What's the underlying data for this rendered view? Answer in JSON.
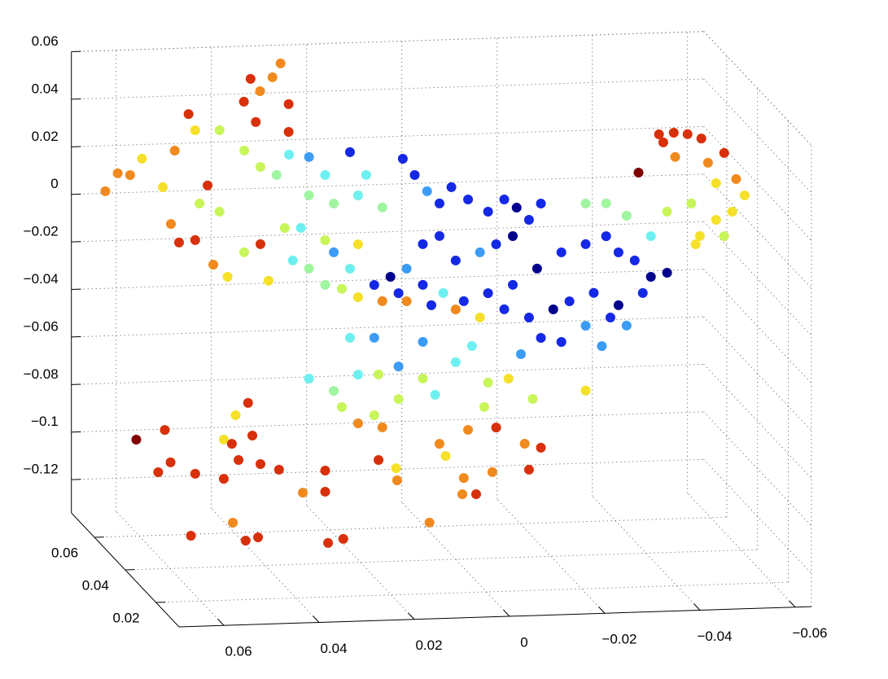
{
  "chart_data": {
    "type": "scatter3",
    "xlim": [
      -0.0634,
      0.0694
    ],
    "ylim": [
      0.005,
      0.075
    ],
    "zlim": [
      -0.134,
      0.06
    ],
    "xticks": [
      {
        "value": -0.06,
        "label": "−0.06"
      },
      {
        "value": -0.04,
        "label": "−0.04"
      },
      {
        "value": -0.02,
        "label": "−0.02"
      },
      0,
      0.02,
      0.04,
      0.06
    ],
    "yticks": [
      0.02,
      0.04,
      0.06
    ],
    "zticks": [
      {
        "value": -0.12,
        "label": "−0.12"
      },
      {
        "value": -0.1,
        "label": "−0.1"
      },
      {
        "value": -0.08,
        "label": "−0.08"
      },
      {
        "value": -0.06,
        "label": "−0.06"
      },
      {
        "value": -0.04,
        "label": "−0.04"
      },
      {
        "value": -0.02,
        "label": "−0.02"
      },
      0,
      0.02,
      0.04,
      0.06
    ],
    "grid": true,
    "x": [
      0.0655,
      0.0629,
      0.0603,
      0.0578,
      0.0615,
      0.059,
      0.0561,
      0.0547,
      0.0521,
      0.0496,
      0.0598,
      0.0581,
      0.0547,
      0.0509,
      0.0479,
      0.0444,
      0.041,
      0.0393,
      0.0538,
      0.0496,
      0.035,
      0.033,
      0.0304,
      0.0287,
      0.0364,
      0.027,
      0.0339,
      0.027,
      0.0444,
      0.041,
      0.0376,
      0.035,
      0.0308,
      0.0274,
      0.0222,
      0.0188,
      0.0308,
      0.0256,
      0.0205,
      0.0154,
      0.0359,
      0.0325,
      0.0274,
      0.0205,
      0.0342,
      0.0308,
      0.0256,
      0.0222,
      0.0111,
      0.0086,
      0.006,
      0.0034,
      0.0009,
      -0.0026,
      -0.0068,
      -0.0102,
      -0.0128,
      -0.0154,
      -0.0179,
      -0.012,
      -0.0085,
      -0.0051,
      0,
      0.0034,
      0.0069,
      0.0103,
      0.0137,
      0.0171,
      0.012,
      0.0069,
      0.0026,
      -0.0017,
      -0.0068,
      -0.012,
      -0.0171,
      -0.0222,
      -0.0273,
      -0.0316,
      -0.0342,
      -0.0376,
      -0.041,
      -0.0444,
      -0.0393,
      -0.0342,
      -0.029,
      -0.0239,
      -0.0205,
      -0.0154,
      -0.0102,
      -0.0051,
      0,
      0.0051,
      0.0103,
      0.0154,
      0.0205,
      0.0239,
      0.0274,
      -0.0222,
      -0.0179,
      -0.0273,
      -0.0325,
      -0.0359,
      -0.0273,
      -0.0316,
      -0.0359,
      -0.041,
      -0.0427,
      -0.0458,
      -0.0487,
      -0.0516,
      -0.0436,
      -0.0384,
      -0.0461,
      -0.053,
      -0.0564,
      -0.0547,
      -0.0589,
      -0.0607,
      -0.0581,
      -0.0547,
      -0.0513,
      -0.0564,
      -0.0495,
      -0.0504,
      -0.0444,
      0.0222,
      0.0171,
      0.012,
      0.0308,
      0.0256,
      0.0205,
      0.0162,
      0.012,
      0.0069,
      0.0043,
      0,
      -0.0068,
      -0.0111,
      -0.0162,
      -0.0273,
      -0.0307,
      -0.0034,
      0.0069,
      -0.0137,
      0.0239,
      0.0171,
      0.0205,
      -0.006,
      0.059,
      0.053,
      0.0518,
      0.0544,
      0.0547,
      0.0487,
      0.047,
      0.0436,
      0.0456,
      0.041,
      0.0371,
      0.0427,
      0.0487,
      0.0274,
      0.0274,
      0.0321,
      0.0162,
      0.0125,
      0.0123,
      0.0034,
      0.0021,
      -0.0026,
      -0.0085,
      -0.0145,
      -0.0179,
      -0.0154,
      -0.0077,
      -0.0017,
      -0.0043,
      -0.0014,
      0.0055,
      0.0556,
      0.0468,
      0.0441,
      0.0415,
      0.0268,
      0.0236,
      0.0154,
      0.0462
    ],
    "y": [
      0.065,
      0.065,
      0.065,
      0.065,
      0.04,
      0.04,
      0.04,
      0.04,
      0.04,
      0.04,
      0.04,
      0.04,
      0.04,
      0.04,
      0.04,
      0.04,
      0.04,
      0.04,
      0.04,
      0.04,
      0.065,
      0.065,
      0.065,
      0.065,
      0.065,
      0.065,
      0.065,
      0.065,
      0.04,
      0.04,
      0.04,
      0.04,
      0.04,
      0.04,
      0.04,
      0.04,
      0.04,
      0.04,
      0.04,
      0.04,
      0.04,
      0.04,
      0.04,
      0.04,
      0.04,
      0.04,
      0.04,
      0.04,
      0.04,
      0.04,
      0.04,
      0.04,
      0.04,
      0.04,
      0.04,
      0.04,
      0.04,
      0.04,
      0.04,
      0.04,
      0.04,
      0.04,
      0.04,
      0.04,
      0.04,
      0.04,
      0.04,
      0.04,
      0.04,
      0.04,
      0.04,
      0.04,
      0.04,
      0.04,
      0.04,
      0.04,
      0.04,
      0.04,
      0.04,
      0.04,
      0.04,
      0.04,
      0.04,
      0.04,
      0.04,
      0.04,
      0.04,
      0.04,
      0.04,
      0.04,
      0.04,
      0.04,
      0.04,
      0.04,
      0.04,
      0.04,
      0.04,
      0.04,
      0.04,
      0.04,
      0.04,
      0.04,
      0.04,
      0.04,
      0.04,
      0.04,
      0.04,
      0.04,
      0.04,
      0.04,
      0.04,
      0.04,
      0.04,
      0.04,
      0.04,
      0.04,
      0.04,
      0.04,
      0.04,
      0.04,
      0.04,
      0.04,
      0.04,
      0.04,
      0.04,
      0.04,
      0.04,
      0.04,
      0.04,
      0.04,
      0.04,
      0.04,
      0.04,
      0.04,
      0.04,
      0.04,
      0.04,
      0.04,
      0.04,
      0.04,
      0.04,
      0.04,
      0.04,
      0.04,
      0.04,
      0.04,
      0.04,
      0.04,
      0.065,
      0.065,
      0.065,
      0.065,
      0.04,
      0.04,
      0.04,
      0.04,
      0.04,
      0.04,
      0.04,
      0.04,
      0.04,
      0.04,
      0.04,
      0.04,
      0.04,
      0.04,
      0.04,
      0.04,
      0.04,
      0.04,
      0.04,
      0.04,
      0.04,
      0.04,
      0.04,
      0.04,
      0.04,
      0.04,
      0.04,
      0.04,
      0.04,
      0.04,
      0.04,
      0.04,
      0.04,
      0.04,
      0.04
    ],
    "z": [
      0.0079,
      0.0153,
      0.0144,
      0.0211,
      0.0265,
      0.0417,
      0.0569,
      0.05,
      0.0266,
      0.0497,
      0.0109,
      0.003,
      0.0038,
      -0.0068,
      -0.0121,
      -0.002,
      0.0012,
      -0.0143,
      0.0191,
      0.0154,
      0.0532,
      0.0479,
      0.0536,
      0.0593,
      0.0437,
      0.0421,
      0.035,
      0.0304,
      0.0408,
      0.0337,
      0.0301,
      0.0385,
      0.0372,
      0.0294,
      0.0387,
      0.0289,
      0.0211,
      0.0173,
      0.0204,
      0.015,
      0.0077,
      0.0075,
      0.002,
      -0.0002,
      -0.0061,
      -0.0097,
      -0.0032,
      -0.0103,
      0.0352,
      0.0282,
      0.0212,
      0.0159,
      0.0226,
      0.0172,
      0.0118,
      0.0167,
      0.0131,
      0.0078,
      0.0145,
      0.0012,
      -0.002,
      -0.0052,
      -0.0083,
      0.0022,
      -0.001,
      -0.0111,
      -0.0143,
      -0.0175,
      -0.0213,
      -0.0181,
      -0.0218,
      -0.0255,
      -0.0225,
      -0.0193,
      -0.0128,
      -0.0063,
      -0.0032,
      -0.0001,
      -0.0071,
      -0.0107,
      -0.0178,
      -0.0163,
      -0.0245,
      -0.0293,
      -0.0238,
      -0.027,
      -0.0302,
      -0.0333,
      -0.0295,
      -0.0326,
      -0.0289,
      -0.0268,
      -0.0248,
      -0.0244,
      -0.0224,
      -0.0187,
      -0.0168,
      -0.044,
      -0.042,
      -0.0375,
      -0.0344,
      -0.038,
      0.0139,
      0.0137,
      0.0082,
      -0.0007,
      0.042,
      0.0425,
      0.0417,
      0.0397,
      0.0386,
      0.0262,
      0.0323,
      0.0294,
      0.0333,
      0.0207,
      0.0222,
      0.0152,
      0.0085,
      0.0053,
      -0.0013,
      -0.0017,
      0.0125,
      -0.0047,
      0.0094,
      -0.0394,
      -0.0397,
      -0.0521,
      -0.056,
      -0.0615,
      -0.055,
      -0.0552,
      -0.0658,
      -0.0575,
      -0.0645,
      -0.0511,
      -0.0601,
      -0.0587,
      -0.0676,
      -0.0648,
      -0.0463,
      -0.0445,
      -0.0421,
      -0.0486,
      -0.0684,
      -0.0723,
      -0.0755,
      -0.0703,
      -0.097,
      -0.0933,
      -0.107,
      -0.111,
      -0.0945,
      -0.0805,
      -0.0824,
      -0.0654,
      -0.0893,
      -0.0913,
      -0.0939,
      -0.0792,
      -0.097,
      -0.0949,
      -0.1038,
      -0.1039,
      -0.0912,
      -0.0949,
      -0.1,
      -0.0852,
      -0.0904,
      -0.0797,
      -0.0791,
      -0.0863,
      -0.0882,
      -0.0973,
      -0.0978,
      -0.0999,
      -0.1069,
      -0.1067,
      -0.1182,
      -0.1205,
      -0.1156,
      -0.1233,
      -0.1221,
      -0.1254,
      -0.1239,
      -0.0775,
      -0.0704
    ],
    "colors": [
      "#f08a1e",
      "#f08a1e",
      "#f08a1e",
      "#f5e02a",
      "#f5e02a",
      "#f08a1e",
      "#d8300a",
      "#f5e02a",
      "#d8300a",
      "#c8f55a",
      "#f08a1e",
      "#d8300a",
      "#d8300a",
      "#f08a1e",
      "#f5e02a",
      "#c8f55a",
      "#d8300a",
      "#f5e02a",
      "#c8f55a",
      "#c8f55a",
      "#d8300a",
      "#f08a1e",
      "#f08a1e",
      "#f08a1e",
      "#d8300a",
      "#d8300a",
      "#d8300a",
      "#d8300a",
      "#c8f55a",
      "#c8f55a",
      "#a0f5a0",
      "#6ff0f0",
      "#3c9cf5",
      "#6ff0f0",
      "#1428e6",
      "#6ff0f0",
      "#a0f5a0",
      "#a0f5a0",
      "#6ff0f0",
      "#a0f5a0",
      "#c8f55a",
      "#6ff0f0",
      "#c8f55a",
      "#f5e02a",
      "#6ff0f0",
      "#a0f5a0",
      "#3c9cf5",
      "#6ff0f0",
      "#1428e6",
      "#1428e6",
      "#3c9cf5",
      "#1428e6",
      "#1428e6",
      "#1428e6",
      "#1428e6",
      "#1428e6",
      "#00008c",
      "#1428e6",
      "#1428e6",
      "#00008c",
      "#1428e6",
      "#3c9cf5",
      "#1428e6",
      "#1428e6",
      "#1428e6",
      "#3c9cf5",
      "#00008c",
      "#1428e6",
      "#1428e6",
      "#1428e6",
      "#6ff0f0",
      "#1428e6",
      "#1428e6",
      "#1428e6",
      "#00008c",
      "#1428e6",
      "#1428e6",
      "#1428e6",
      "#1428e6",
      "#1428e6",
      "#00008c",
      "#00008c",
      "#1428e6",
      "#00008c",
      "#1428e6",
      "#1428e6",
      "#00008c",
      "#1428e6",
      "#1428e6",
      "#f5e02a",
      "#f08a1e",
      "#1428e6",
      "#f08a1e",
      "#f08a1e",
      "#f5e02a",
      "#c8f55a",
      "#a0f5a0",
      "#1428e6",
      "#1428e6",
      "#3c9cf5",
      "#1428e6",
      "#3c9cf5",
      "#a0f5a0",
      "#a0f5a0",
      "#a0f5a0",
      "#6ff0f0",
      "#d8300a",
      "#d8300a",
      "#d8300a",
      "#d8300a",
      "#d8300a",
      "#800000",
      "#f08a1e",
      "#f08a1e",
      "#d8300a",
      "#f5e02a",
      "#f08a1e",
      "#f5e02a",
      "#f5e02a",
      "#f5e02a",
      "#f5e02a",
      "#c8f55a",
      "#c8f55a",
      "#f5e02a",
      "#c8f55a",
      "#6ff0f0",
      "#3c9cf5",
      "#3c9cf5",
      "#6ff0f0",
      "#a0f5a0",
      "#6ff0f0",
      "#c8f55a",
      "#c8f55a",
      "#c8f55a",
      "#6ff0f0",
      "#6ff0f0",
      "#c8f55a",
      "#f5e02a",
      "#c8f55a",
      "#f5e02a",
      "#3c9cf5",
      "#6ff0f0",
      "#3c9cf5",
      "#3c9cf5",
      "#c8f55a",
      "#c8f55a",
      "#f08a1e",
      "#c8f55a",
      "#800000",
      "#d8300a",
      "#d8300a",
      "#d8300a",
      "#d8300a",
      "#f5e02a",
      "#d8300a",
      "#d8300a",
      "#d8300a",
      "#d8300a",
      "#d8300a",
      "#d8300a",
      "#d8300a",
      "#d8300a",
      "#d8300a",
      "#f08a1e",
      "#d8300a",
      "#f5e02a",
      "#f08a1e",
      "#f08a1e",
      "#f5e02a",
      "#f08a1e",
      "#d8300a",
      "#f08a1e",
      "#d8300a",
      "#d8300a",
      "#f08a1e",
      "#f08a1e",
      "#d8300a",
      "#f08a1e",
      "#f08a1e",
      "#d8300a",
      "#f08a1e",
      "#d8300a",
      "#d8300a",
      "#d8300a",
      "#d8300a",
      "#f08a1e",
      "#f5e02a"
    ]
  }
}
